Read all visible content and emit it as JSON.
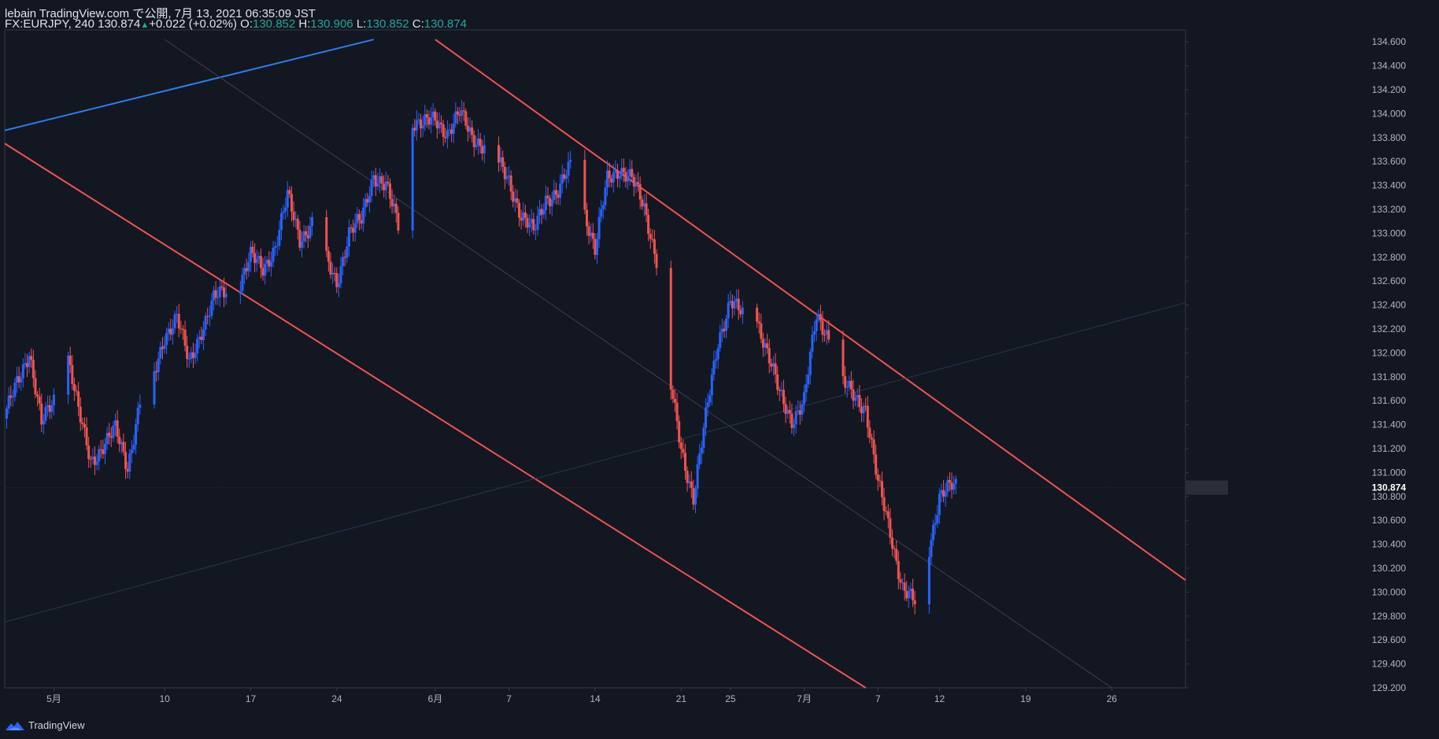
{
  "header": {
    "publish_line": "lebain TradingView.com で公開, 7月 13, 2021 06:35:09 JST",
    "symbol_line": "FX:EURJPY, 240 130.874",
    "change": "+0.022 (+0.02%)",
    "o_label": "O:",
    "o_value": "130.852",
    "h_label": "H:",
    "h_value": "130.906",
    "l_label": "L:",
    "l_value": "130.852",
    "c_label": "C:",
    "c_value": "130.874"
  },
  "footer": {
    "brand": "TradingView",
    "logo_icon": "tradingview-logo-icon"
  },
  "colors": {
    "background": "#131722",
    "up": "#2962ff",
    "down": "#f05350",
    "grid": "#363a45",
    "text": "#b2b5be",
    "accent": "#26a69a"
  },
  "chart_data": {
    "type": "candlestick",
    "symbol": "FX:EURJPY",
    "interval": "240",
    "last_price": "130.874",
    "y_range": [
      129.2,
      134.7
    ],
    "y_ticks": [
      "134.600",
      "134.400",
      "134.200",
      "134.000",
      "133.800",
      "133.600",
      "133.400",
      "133.200",
      "133.000",
      "132.800",
      "132.600",
      "132.400",
      "132.200",
      "132.000",
      "131.800",
      "131.600",
      "131.400",
      "131.200",
      "131.000",
      "130.800",
      "130.600",
      "130.400",
      "130.200",
      "130.000",
      "129.800",
      "129.600",
      "129.400",
      "129.200"
    ],
    "x_range": [
      "2021-04-27",
      "2021-08-01"
    ],
    "x_ticks": [
      {
        "label": "5月",
        "date": "2021-05-01"
      },
      {
        "label": "10",
        "date": "2021-05-10"
      },
      {
        "label": "17",
        "date": "2021-05-17"
      },
      {
        "label": "24",
        "date": "2021-05-24"
      },
      {
        "label": "6月",
        "date": "2021-06-01"
      },
      {
        "label": "7",
        "date": "2021-06-07"
      },
      {
        "label": "14",
        "date": "2021-06-14"
      },
      {
        "label": "21",
        "date": "2021-06-21"
      },
      {
        "label": "25",
        "date": "2021-06-25"
      },
      {
        "label": "7月",
        "date": "2021-07-01"
      },
      {
        "label": "7",
        "date": "2021-07-07"
      },
      {
        "label": "12",
        "date": "2021-07-12"
      },
      {
        "label": "19",
        "date": "2021-07-19"
      },
      {
        "label": "26",
        "date": "2021-07-26"
      }
    ],
    "close_path": [
      {
        "date": "2021-04-27",
        "close": 131.45
      },
      {
        "date": "2021-04-28",
        "close": 131.75
      },
      {
        "date": "2021-04-29",
        "close": 132.02
      },
      {
        "date": "2021-04-30",
        "close": 131.4
      },
      {
        "date": "2021-05-01",
        "close": 131.6
      },
      {
        "date": "2021-05-02",
        "close": 132.05
      },
      {
        "date": "2021-05-03",
        "close": 131.5
      },
      {
        "date": "2021-05-04",
        "close": 131.1
      },
      {
        "date": "2021-05-06",
        "close": 131.35
      },
      {
        "date": "2021-05-07",
        "close": 131.05
      },
      {
        "date": "2021-05-08",
        "close": 131.6
      },
      {
        "date": "2021-05-09",
        "close": 131.75
      },
      {
        "date": "2021-05-10",
        "close": 132.15
      },
      {
        "date": "2021-05-11",
        "close": 132.3
      },
      {
        "date": "2021-05-12",
        "close": 131.9
      },
      {
        "date": "2021-05-13",
        "close": 132.2
      },
      {
        "date": "2021-05-14",
        "close": 132.45
      },
      {
        "date": "2021-05-16",
        "close": 132.55
      },
      {
        "date": "2021-05-17",
        "close": 132.8
      },
      {
        "date": "2021-05-18",
        "close": 132.7
      },
      {
        "date": "2021-05-19",
        "close": 132.9
      },
      {
        "date": "2021-05-20",
        "close": 133.3
      },
      {
        "date": "2021-05-21",
        "close": 132.95
      },
      {
        "date": "2021-05-22",
        "close": 133.1
      },
      {
        "date": "2021-05-23",
        "close": 132.8
      },
      {
        "date": "2021-05-24",
        "close": 132.6
      },
      {
        "date": "2021-05-25",
        "close": 133.0
      },
      {
        "date": "2021-05-26",
        "close": 133.1
      },
      {
        "date": "2021-05-27",
        "close": 133.5
      },
      {
        "date": "2021-05-28",
        "close": 133.4
      },
      {
        "date": "2021-05-29",
        "close": 133.05
      },
      {
        "date": "2021-05-30",
        "close": 133.95
      },
      {
        "date": "2021-05-31",
        "close": 133.9
      },
      {
        "date": "2021-06-01",
        "close": 133.95
      },
      {
        "date": "2021-06-02",
        "close": 133.85
      },
      {
        "date": "2021-06-03",
        "close": 134.0
      },
      {
        "date": "2021-06-04",
        "close": 133.8
      },
      {
        "date": "2021-06-05",
        "close": 133.75
      },
      {
        "date": "2021-06-06",
        "close": 133.6
      },
      {
        "date": "2021-06-07",
        "close": 133.45
      },
      {
        "date": "2021-06-08",
        "close": 133.15
      },
      {
        "date": "2021-06-09",
        "close": 133.0
      },
      {
        "date": "2021-06-10",
        "close": 133.3
      },
      {
        "date": "2021-06-11",
        "close": 133.35
      },
      {
        "date": "2021-06-12",
        "close": 133.55
      },
      {
        "date": "2021-06-13",
        "close": 133.25
      },
      {
        "date": "2021-06-14",
        "close": 132.85
      },
      {
        "date": "2021-06-15",
        "close": 133.45
      },
      {
        "date": "2021-06-16",
        "close": 133.55
      },
      {
        "date": "2021-06-17",
        "close": 133.45
      },
      {
        "date": "2021-06-18",
        "close": 133.2
      },
      {
        "date": "2021-06-19",
        "close": 132.8
      },
      {
        "date": "2021-06-20",
        "close": 131.8
      },
      {
        "date": "2021-06-21",
        "close": 131.2
      },
      {
        "date": "2021-06-22",
        "close": 130.8
      },
      {
        "date": "2021-06-23",
        "close": 131.45
      },
      {
        "date": "2021-06-24",
        "close": 132.1
      },
      {
        "date": "2021-06-25",
        "close": 132.45
      },
      {
        "date": "2021-06-26",
        "close": 132.3
      },
      {
        "date": "2021-06-27",
        "close": 132.35
      },
      {
        "date": "2021-06-28",
        "close": 132.0
      },
      {
        "date": "2021-06-29",
        "close": 131.65
      },
      {
        "date": "2021-06-30",
        "close": 131.45
      },
      {
        "date": "2021-07-01",
        "close": 131.6
      },
      {
        "date": "2021-07-02",
        "close": 132.3
      },
      {
        "date": "2021-07-03",
        "close": 132.15
      },
      {
        "date": "2021-07-04",
        "close": 131.75
      },
      {
        "date": "2021-07-05",
        "close": 131.65
      },
      {
        "date": "2021-07-06",
        "close": 131.55
      },
      {
        "date": "2021-07-07",
        "close": 130.9
      },
      {
        "date": "2021-07-08",
        "close": 130.5
      },
      {
        "date": "2021-07-09",
        "close": 130.05
      },
      {
        "date": "2021-07-10",
        "close": 129.9
      },
      {
        "date": "2021-07-11",
        "close": 130.3
      },
      {
        "date": "2021-07-12",
        "close": 130.8
      },
      {
        "date": "2021-07-13",
        "close": 130.874
      }
    ],
    "trendlines": [
      {
        "name": "upper-channel",
        "color": "#f05350",
        "p1": {
          "date": "2021-06-01",
          "price": 134.62
        },
        "p2": {
          "date": "2021-08-01",
          "price": 130.1
        }
      },
      {
        "name": "lower-channel",
        "color": "#f05350",
        "p1": {
          "date": "2021-04-27",
          "price": 133.75
        },
        "p2": {
          "date": "2021-07-06",
          "price": 129.2
        }
      },
      {
        "name": "blue-line",
        "color": "#2e7ee8",
        "p1": {
          "date": "2021-04-27",
          "price": 133.86
        },
        "p2": {
          "date": "2021-05-27",
          "price": 134.62
        }
      },
      {
        "name": "mid-channel",
        "color": "#3c3f4c",
        "p1": {
          "date": "2021-05-10",
          "price": 134.62
        },
        "p2": {
          "date": "2021-07-26",
          "price": 129.2
        }
      },
      {
        "name": "rising-line",
        "color": "#2a3550",
        "p1": {
          "date": "2021-04-27",
          "price": 129.75
        },
        "p2": {
          "date": "2021-08-01",
          "price": 132.42
        }
      }
    ]
  }
}
